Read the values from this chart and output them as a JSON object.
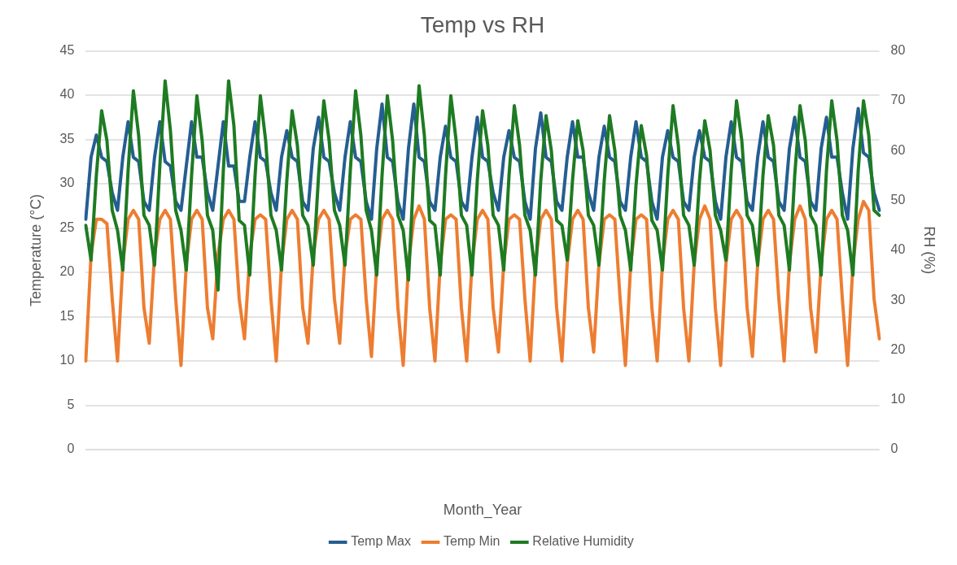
{
  "chart_data": {
    "type": "line",
    "title": "Temp vs RH",
    "xlabel": "Month_Year",
    "ylabel": "Temperature (°C)",
    "y2label": "RH (%)",
    "categories": [
      null,
      null,
      null,
      null,
      null,
      null,
      null,
      null,
      null,
      null,
      null,
      null,
      null,
      null,
      null,
      null,
      null,
      null,
      null,
      null,
      null,
      null,
      null,
      null,
      null,
      null,
      null,
      null,
      null,
      null,
      null,
      null,
      null,
      null,
      null,
      null,
      null,
      null,
      null,
      null,
      null,
      null,
      null,
      null,
      null,
      null,
      null,
      null,
      null,
      null,
      null,
      null,
      null,
      null,
      null,
      null,
      null,
      null,
      null,
      null,
      null,
      null,
      null,
      null,
      null,
      null,
      null,
      null,
      null,
      null,
      null,
      null,
      null,
      null,
      null,
      null,
      null,
      null,
      null,
      null,
      null,
      null,
      null,
      null,
      null,
      null,
      null,
      null,
      null,
      null,
      null,
      null,
      null,
      null,
      null,
      null,
      null,
      null,
      null,
      null,
      null,
      null,
      null,
      null,
      null,
      null,
      null,
      null,
      null,
      null,
      null,
      null,
      null,
      null,
      null,
      null,
      null,
      null,
      null,
      null,
      null,
      null,
      null,
      null,
      null,
      null,
      null,
      null,
      null,
      null,
      null,
      null,
      null,
      null,
      null,
      null,
      null,
      null,
      null,
      null,
      null,
      null,
      null,
      null,
      null,
      null,
      null,
      null,
      null,
      null,
      null
    ],
    "series": [
      {
        "name": "Temp Max",
        "color": "#255e91",
        "values": [
          26,
          33,
          35.5,
          33,
          32.5,
          29,
          27,
          33,
          37,
          33,
          32.5,
          28,
          27,
          33,
          37,
          32.5,
          32,
          28,
          27,
          32,
          37,
          33,
          33,
          29,
          27,
          32,
          37,
          32,
          32,
          28,
          28,
          33,
          37,
          33,
          32.5,
          29,
          27,
          33,
          36,
          33,
          32.5,
          28,
          27,
          34,
          37.5,
          33,
          32.5,
          29,
          27,
          33,
          37,
          33,
          32.5,
          28,
          26,
          34,
          39,
          33,
          32.5,
          28,
          26,
          34,
          39,
          33,
          32.5,
          28,
          27,
          33,
          36.5,
          33,
          32.5,
          28,
          27,
          33,
          37.5,
          33,
          32.5,
          29,
          27,
          33,
          36,
          33,
          32.5,
          28,
          26,
          34,
          38,
          33,
          32.5,
          28,
          27,
          33,
          37,
          33,
          33,
          29,
          27,
          33,
          36.5,
          33,
          32.5,
          28,
          27,
          33,
          37,
          33,
          32.5,
          28,
          26,
          33,
          36,
          33,
          32.5,
          28,
          27,
          33,
          36,
          33,
          32.5,
          28,
          26,
          33,
          37,
          33,
          32.5,
          28,
          27,
          33,
          37,
          33,
          32.5,
          28,
          27,
          34,
          37.5,
          33,
          32.5,
          28,
          27,
          34,
          37.5,
          33,
          33,
          29,
          26,
          34,
          38.5,
          33.5,
          33,
          29,
          27
        ]
      },
      {
        "name": "Temp Min",
        "color": "#ed7d31",
        "values": [
          10,
          22,
          26,
          26,
          25.5,
          17,
          10,
          21,
          26,
          27,
          26,
          16,
          12,
          22,
          26,
          27,
          26,
          17,
          9.5,
          21,
          26,
          27,
          26,
          16,
          12.5,
          22,
          26,
          27,
          26,
          17,
          12.5,
          22,
          26,
          26.5,
          26,
          17,
          10,
          21,
          26,
          27,
          26,
          16,
          12,
          22,
          26,
          27,
          26,
          17,
          12,
          22,
          26,
          26.5,
          26,
          17,
          10.5,
          21,
          26,
          27,
          26,
          16,
          9.5,
          21,
          26,
          27.5,
          26,
          16,
          10,
          21,
          26,
          26.5,
          26,
          16,
          10,
          21,
          26,
          27,
          26,
          16,
          11,
          21,
          26,
          26.5,
          26,
          17,
          10,
          21,
          26,
          27,
          26,
          16,
          10,
          21,
          26,
          27,
          26,
          16,
          11,
          21,
          26,
          26.5,
          26,
          17,
          9.5,
          21,
          26,
          26.5,
          26,
          16,
          10,
          21,
          26,
          27,
          26,
          16,
          10,
          21,
          26,
          27.5,
          26,
          16,
          9.5,
          21,
          26,
          27,
          26,
          16,
          10.5,
          21,
          26,
          27,
          26,
          17,
          10,
          21,
          26,
          27.5,
          26,
          16,
          11,
          21,
          26,
          27,
          26,
          17,
          9.5,
          21,
          26,
          28,
          27,
          17,
          12.5
        ]
      },
      {
        "name": "Relative Humidity",
        "color": "#1e7b22",
        "axis": "y2",
        "values": [
          45,
          38,
          55,
          68,
          62,
          48,
          44,
          36,
          56,
          72,
          63,
          47,
          45,
          37,
          57,
          74,
          64,
          48,
          44,
          36,
          55,
          71,
          62,
          47,
          44,
          32,
          56,
          74,
          65,
          46,
          45,
          35,
          55,
          71,
          62,
          47,
          44,
          36,
          54,
          68,
          61,
          47,
          45,
          37,
          55,
          70,
          62,
          48,
          45,
          37,
          56,
          72,
          63,
          48,
          44,
          35,
          55,
          71,
          62,
          47,
          44,
          34,
          56,
          73,
          63,
          46,
          45,
          35,
          55,
          71,
          62,
          47,
          45,
          35,
          54,
          68,
          61,
          47,
          45,
          36,
          55,
          69,
          61,
          47,
          44,
          35,
          54,
          67,
          60,
          46,
          45,
          38,
          54,
          66,
          60,
          47,
          45,
          37,
          54,
          67,
          60,
          47,
          44,
          36,
          53,
          65,
          59,
          46,
          44,
          36,
          55,
          69,
          61,
          47,
          45,
          37,
          54,
          66,
          60,
          47,
          44,
          38,
          56,
          70,
          62,
          47,
          45,
          37,
          55,
          67,
          61,
          47,
          45,
          36,
          55,
          69,
          62,
          47,
          45,
          35,
          56,
          70,
          62,
          47,
          44,
          35,
          56,
          70,
          63,
          48,
          47
        ]
      }
    ],
    "ylim": [
      0,
      45
    ],
    "yticks": [
      0,
      5,
      10,
      15,
      20,
      25,
      30,
      35,
      40,
      45
    ],
    "y2lim": [
      0,
      80
    ],
    "y2ticks": [
      0,
      10,
      20,
      30,
      40,
      50,
      60,
      70,
      80
    ],
    "grid": "y",
    "legend": "bottom",
    "marker": "none",
    "line_style": "solid"
  }
}
